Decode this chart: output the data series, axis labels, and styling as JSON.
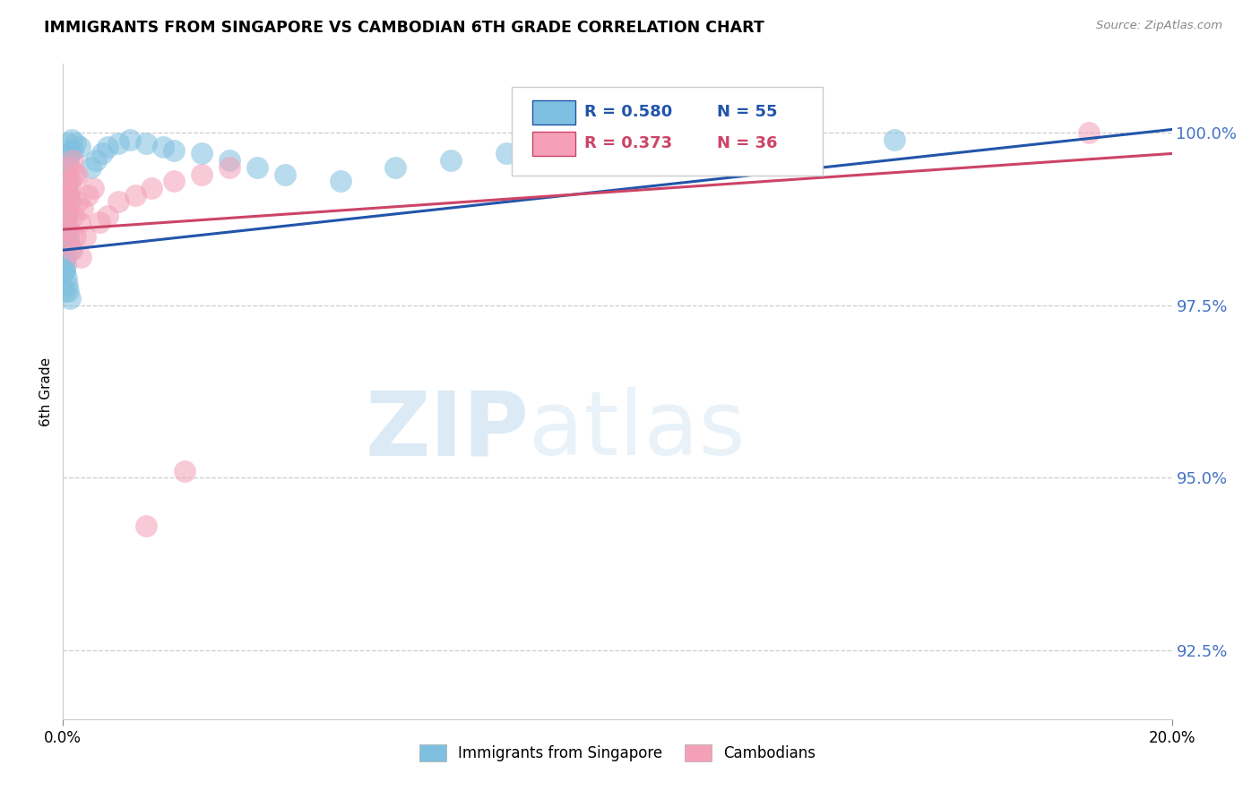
{
  "title": "IMMIGRANTS FROM SINGAPORE VS CAMBODIAN 6TH GRADE CORRELATION CHART",
  "source": "Source: ZipAtlas.com",
  "ylabel": "6th Grade",
  "right_yticks": [
    100.0,
    97.5,
    95.0,
    92.5
  ],
  "xlim": [
    0.0,
    20.0
  ],
  "ylim": [
    91.5,
    101.0
  ],
  "legend1_label": "Immigrants from Singapore",
  "legend2_label": "Cambodians",
  "R1": 0.58,
  "N1": 55,
  "R2": 0.373,
  "N2": 36,
  "color_blue": "#7fbfdf",
  "color_pink": "#f4a0b8",
  "color_blue_dark": "#2255aa",
  "color_pink_dark": "#cc4466",
  "color_right_axis": "#4472c4",
  "watermark_ZIP": "ZIP",
  "watermark_atlas": "atlas",
  "blue_x": [
    0.08,
    0.15,
    0.22,
    0.3,
    0.18,
    0.12,
    0.09,
    0.07,
    0.05,
    0.04,
    0.06,
    0.1,
    0.13,
    0.08,
    0.06,
    0.05,
    0.07,
    0.09,
    0.11,
    0.14,
    0.05,
    0.04,
    0.03,
    0.06,
    0.08,
    0.1,
    0.12,
    0.07,
    0.05,
    0.04,
    0.03,
    0.02,
    0.06,
    0.08,
    0.5,
    0.6,
    0.7,
    0.8,
    1.0,
    1.2,
    1.5,
    1.8,
    2.0,
    2.5,
    3.0,
    3.5,
    4.0,
    5.0,
    6.0,
    7.0,
    8.0,
    9.0,
    10.0,
    12.0,
    15.0
  ],
  "blue_y": [
    99.85,
    99.9,
    99.85,
    99.8,
    99.75,
    99.7,
    99.6,
    99.5,
    99.4,
    99.3,
    99.2,
    99.1,
    99.0,
    98.9,
    98.8,
    98.7,
    98.6,
    98.5,
    98.4,
    98.3,
    98.2,
    98.1,
    98.0,
    97.9,
    97.8,
    97.7,
    97.6,
    99.3,
    99.1,
    98.5,
    98.0,
    97.7,
    98.8,
    99.2,
    99.5,
    99.6,
    99.7,
    99.8,
    99.85,
    99.9,
    99.85,
    99.8,
    99.75,
    99.7,
    99.6,
    99.5,
    99.4,
    99.3,
    99.5,
    99.6,
    99.7,
    99.75,
    99.8,
    99.85,
    99.9
  ],
  "pink_x": [
    0.07,
    0.12,
    0.18,
    0.25,
    0.1,
    0.08,
    0.06,
    0.05,
    0.09,
    0.14,
    0.2,
    0.3,
    0.4,
    0.15,
    0.11,
    0.08,
    0.06,
    0.13,
    0.19,
    0.27,
    0.35,
    0.45,
    0.55,
    0.65,
    0.8,
    1.0,
    1.3,
    1.6,
    2.0,
    2.5,
    3.0,
    18.5,
    2.2,
    1.5,
    0.22,
    0.32
  ],
  "pink_y": [
    99.3,
    99.5,
    99.6,
    99.4,
    99.1,
    98.9,
    98.8,
    98.6,
    99.0,
    99.2,
    99.4,
    98.7,
    98.5,
    98.3,
    98.6,
    99.1,
    98.4,
    99.3,
    98.8,
    99.0,
    98.9,
    99.1,
    99.2,
    98.7,
    98.8,
    99.0,
    99.1,
    99.2,
    99.3,
    99.4,
    99.5,
    100.0,
    95.1,
    94.3,
    98.5,
    98.2
  ],
  "blue_trend_x": [
    0.0,
    20.0
  ],
  "blue_trend_y": [
    98.3,
    100.05
  ],
  "pink_trend_x": [
    0.0,
    20.0
  ],
  "pink_trend_y": [
    98.6,
    99.7
  ]
}
